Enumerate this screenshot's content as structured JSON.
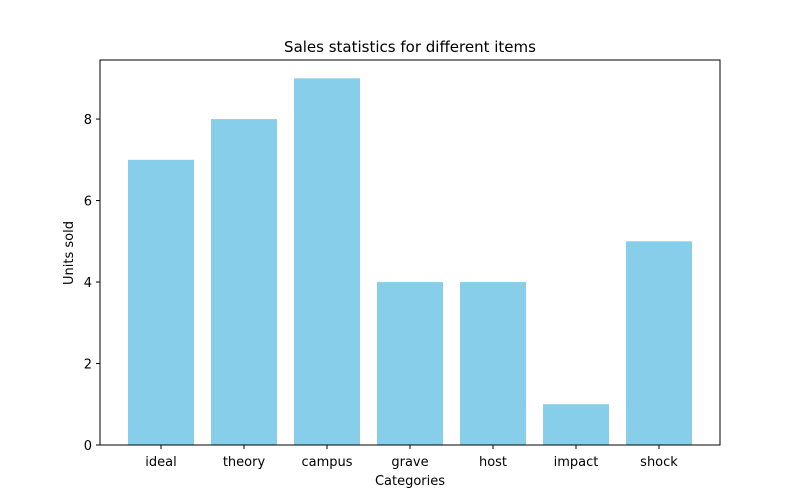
{
  "chart_data": {
    "type": "bar",
    "title": "Sales statistics for different items",
    "xlabel": "Categories",
    "ylabel": "Units sold",
    "categories": [
      "ideal",
      "theory",
      "campus",
      "grave",
      "host",
      "impact",
      "shock"
    ],
    "values": [
      7,
      8,
      9,
      4,
      4,
      1,
      5
    ],
    "ylim": [
      0,
      9.45
    ],
    "yticks": [
      0,
      2,
      4,
      6,
      8
    ],
    "bar_color": "#87ceeb",
    "grid": false,
    "legend": "none"
  }
}
